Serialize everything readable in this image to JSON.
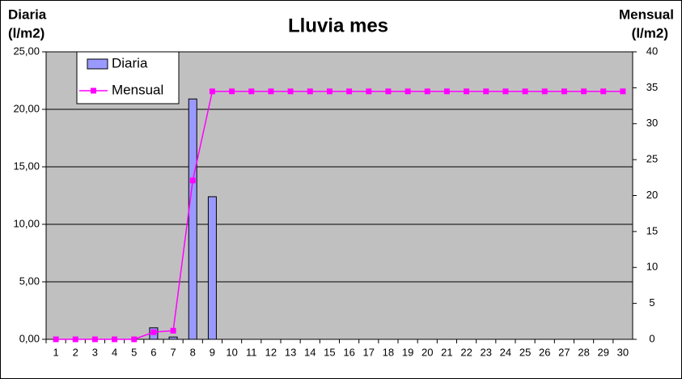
{
  "chart_data": {
    "type": "bar",
    "title": "Lluvia mes",
    "ylabel": [
      "Diaria",
      "(l/m2)"
    ],
    "y2label": [
      "Mensual",
      "(l/m2)"
    ],
    "categories": [
      "1",
      "2",
      "3",
      "4",
      "5",
      "6",
      "7",
      "8",
      "9",
      "10",
      "11",
      "12",
      "13",
      "14",
      "15",
      "16",
      "17",
      "18",
      "19",
      "20",
      "21",
      "22",
      "23",
      "24",
      "25",
      "26",
      "27",
      "28",
      "29",
      "30"
    ],
    "series": [
      {
        "name": "Diaria",
        "type": "bar",
        "color": "#9999ff",
        "values": [
          0,
          0,
          0,
          0,
          0,
          1.0,
          0.2,
          20.9,
          12.4,
          0,
          0,
          0,
          0,
          0,
          0,
          0,
          0,
          0,
          0,
          0,
          0,
          0,
          0,
          0,
          0,
          0,
          0,
          0,
          0,
          0
        ]
      },
      {
        "name": "Mensual",
        "type": "line",
        "axis": "y2",
        "color": "#ff00ff",
        "values": [
          0,
          0,
          0,
          0,
          0,
          1.0,
          1.2,
          22.1,
          34.5,
          34.5,
          34.5,
          34.5,
          34.5,
          34.5,
          34.5,
          34.5,
          34.5,
          34.5,
          34.5,
          34.5,
          34.5,
          34.5,
          34.5,
          34.5,
          34.5,
          34.5,
          34.5,
          34.5,
          34.5,
          34.5
        ]
      }
    ],
    "ylim": [
      0,
      25
    ],
    "yticks": [
      {
        "value": 0,
        "label": "0,00"
      },
      {
        "value": 5,
        "label": "5,00"
      },
      {
        "value": 10,
        "label": "10,00"
      },
      {
        "value": 15,
        "label": "15,00"
      },
      {
        "value": 20,
        "label": "20,00"
      },
      {
        "value": 25,
        "label": "25,00"
      }
    ],
    "y2lim": [
      0,
      40
    ],
    "y2ticks": [
      0,
      5,
      10,
      15,
      20,
      25,
      30,
      35,
      40
    ],
    "grid": true,
    "legend": "top-left",
    "plot_background": "#c0c0c0"
  }
}
